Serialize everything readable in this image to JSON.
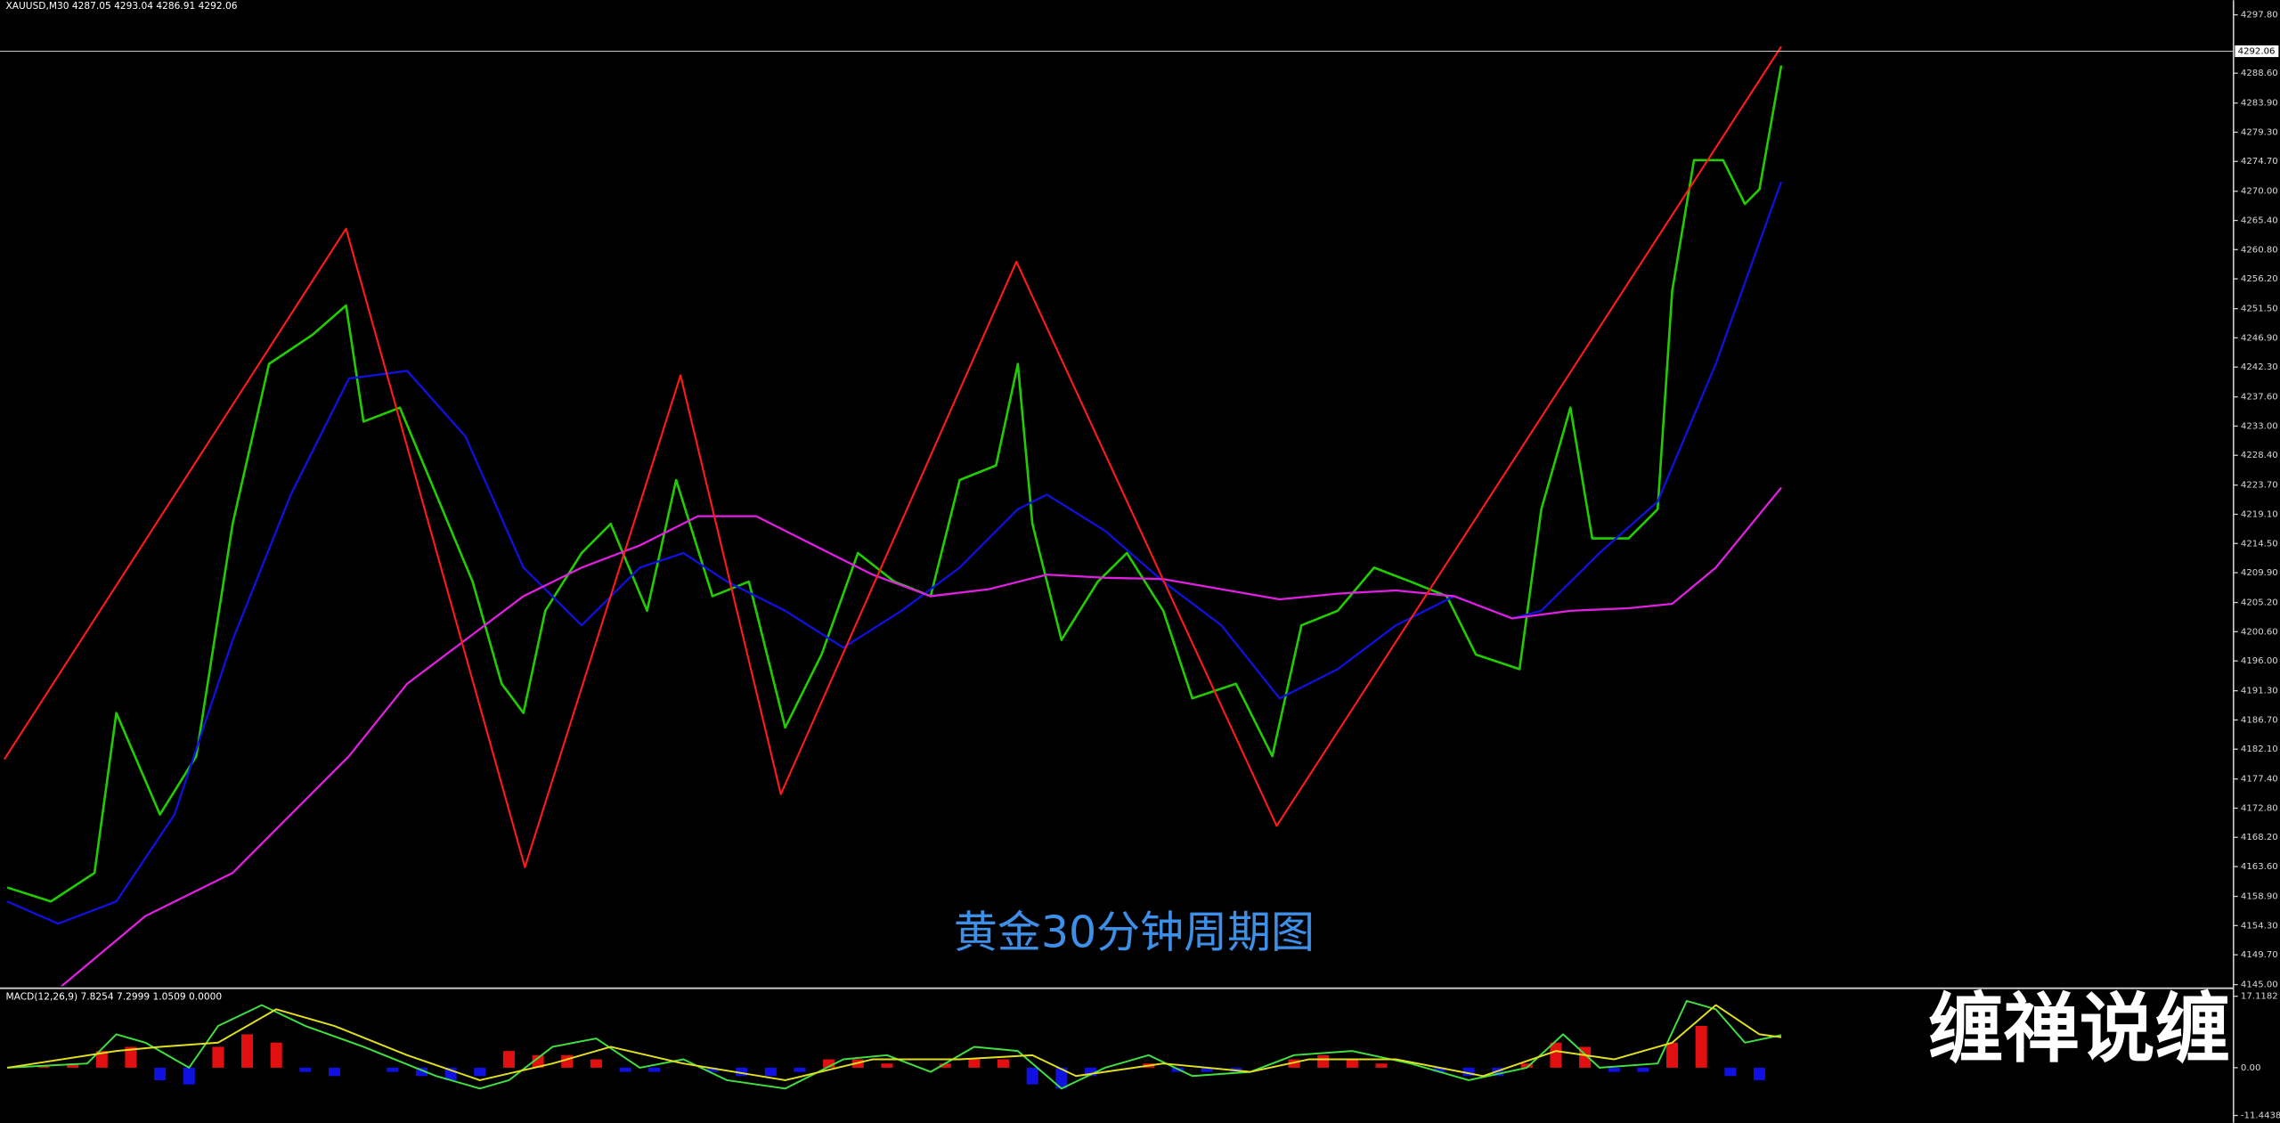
{
  "chart_data": [
    {
      "type": "line",
      "title": "XAUUSD,M30  4287.05 4293.04 4286.91 4292.06",
      "annotation": "黄金30分钟周期图",
      "watermark": "缠禅说缠",
      "xlim": [
        0,
        1536
      ],
      "ylim": [
        4145.0,
        4297.8
      ],
      "yticks": [
        {
          "value": 4297.8,
          "label": "4297.80"
        },
        {
          "value": 4288.6,
          "label": "4288.60"
        },
        {
          "value": 4283.9,
          "label": "4283.90"
        },
        {
          "value": 4279.3,
          "label": "4279.30"
        },
        {
          "value": 4274.7,
          "label": "4274.70"
        },
        {
          "value": 4270.0,
          "label": "4270.00"
        },
        {
          "value": 4265.4,
          "label": "4265.40"
        },
        {
          "value": 4260.8,
          "label": "4260.80"
        },
        {
          "value": 4256.2,
          "label": "4256.20"
        },
        {
          "value": 4251.5,
          "label": "4251.50"
        },
        {
          "value": 4246.9,
          "label": "4246.90"
        },
        {
          "value": 4242.3,
          "label": "4242.30"
        },
        {
          "value": 4237.6,
          "label": "4237.60"
        },
        {
          "value": 4233.0,
          "label": "4233.00"
        },
        {
          "value": 4228.4,
          "label": "4228.40"
        },
        {
          "value": 4223.7,
          "label": "4223.70"
        },
        {
          "value": 4219.1,
          "label": "4219.10"
        },
        {
          "value": 4214.5,
          "label": "4214.50"
        },
        {
          "value": 4209.9,
          "label": "4209.90"
        },
        {
          "value": 4205.2,
          "label": "4205.20"
        },
        {
          "value": 4200.6,
          "label": "4200.60"
        },
        {
          "value": 4196.0,
          "label": "4196.00"
        },
        {
          "value": 4191.3,
          "label": "4191.30"
        },
        {
          "value": 4186.7,
          "label": "4186.70"
        },
        {
          "value": 4182.1,
          "label": "4182.10"
        },
        {
          "value": 4177.4,
          "label": "4177.40"
        },
        {
          "value": 4172.8,
          "label": "4172.80"
        },
        {
          "value": 4168.2,
          "label": "4168.20"
        },
        {
          "value": 4163.6,
          "label": "4163.60"
        },
        {
          "value": 4158.9,
          "label": "4158.90"
        },
        {
          "value": 4154.3,
          "label": "4154.30"
        },
        {
          "value": 4149.7,
          "label": "4149.70"
        },
        {
          "value": 4145.0,
          "label": "4145.00"
        }
      ],
      "last_price": 4292.06,
      "series": [
        {
          "color": "#22cc00",
          "width": 1.6,
          "x": [
            5,
            35,
            65,
            80,
            110,
            135,
            160,
            185,
            215,
            238,
            250,
            275,
            300,
            325,
            345,
            360,
            375,
            400,
            420,
            445,
            465,
            490,
            515,
            540,
            565,
            590,
            615,
            640,
            660,
            685,
            700,
            710,
            730,
            755,
            775,
            800,
            820,
            850,
            875,
            895,
            920,
            945,
            970,
            995,
            1015,
            1045,
            1060,
            1080,
            1095,
            1120,
            1140,
            1150,
            1165,
            1185,
            1200,
            1210,
            1225
          ],
          "values": [
            4160.3,
            4158.1,
            4162.6,
            4187.8,
            4171.8,
            4181.0,
            4217.6,
            4242.8,
            4247.4,
            4252.0,
            4233.7,
            4235.9,
            4222.2,
            4208.5,
            4192.4,
            4187.8,
            4203.9,
            4213.0,
            4217.6,
            4203.9,
            4224.5,
            4206.2,
            4208.5,
            4185.5,
            4197.0,
            4213.0,
            4208.5,
            4206.2,
            4224.5,
            4226.8,
            4242.8,
            4217.6,
            4199.3,
            4208.5,
            4213.0,
            4203.9,
            4190.1,
            4192.4,
            4181.0,
            4201.6,
            4203.9,
            4210.7,
            4208.5,
            4206.2,
            4197.0,
            4194.7,
            4219.9,
            4235.9,
            4215.3,
            4215.3,
            4219.9,
            4254.3,
            4274.9,
            4274.9,
            4268.0,
            4270.3,
            4289.8
          ]
        },
        {
          "color": "#1010e0",
          "width": 1.4,
          "x": [
            5,
            40,
            80,
            120,
            160,
            200,
            240,
            280,
            320,
            360,
            400,
            440,
            470,
            500,
            540,
            580,
            620,
            660,
            700,
            720,
            760,
            800,
            840,
            880,
            920,
            960,
            1000,
            1040,
            1060,
            1100,
            1140,
            1180,
            1225
          ],
          "values": [
            4158.1,
            4154.6,
            4158.1,
            4171.8,
            4199.3,
            4222.2,
            4240.5,
            4241.7,
            4231.4,
            4210.7,
            4201.6,
            4210.7,
            4213.0,
            4208.5,
            4203.9,
            4198.1,
            4203.9,
            4210.7,
            4219.9,
            4222.2,
            4216.5,
            4208.5,
            4201.6,
            4190.1,
            4194.7,
            4201.6,
            4206.2,
            4202.7,
            4203.9,
            4213.0,
            4221.1,
            4242.8,
            4271.5
          ]
        },
        {
          "color": "#e020e0",
          "width": 1.4,
          "x": [
            40,
            100,
            160,
            200,
            240,
            280,
            320,
            360,
            400,
            440,
            480,
            520,
            560,
            600,
            640,
            680,
            720,
            760,
            800,
            840,
            880,
            920,
            960,
            1000,
            1040,
            1080,
            1120,
            1150,
            1180,
            1225
          ],
          "values": [
            4144.3,
            4155.8,
            4162.6,
            4171.8,
            4181.0,
            4192.4,
            4199.3,
            4206.2,
            4210.7,
            4214.2,
            4218.8,
            4218.8,
            4214.2,
            4209.6,
            4206.2,
            4207.3,
            4209.6,
            4209.1,
            4208.9,
            4207.3,
            4205.7,
            4206.6,
            4207.1,
            4206.2,
            4202.7,
            4203.9,
            4204.3,
            4205.0,
            4210.7,
            4223.3
          ]
        },
        {
          "color": "#ff1a1a",
          "width": 1.3,
          "x": [
            3,
            238,
            361,
            468,
            537,
            699,
            878,
            1225
          ],
          "values": [
            4180.5,
            4264.1,
            4163.5,
            4241.0,
            4175.0,
            4258.9,
            4170.0,
            4292.8
          ]
        }
      ]
    },
    {
      "type": "macd",
      "title": "MACD(12,26,9) 7.8254 7.2999 1.0509 0.0000",
      "xlim": [
        0,
        1536
      ],
      "ylim": [
        -11.4438,
        17.1182
      ],
      "yticks": [
        17.1182,
        {
          "value": 0,
          "label": "0.00"
        },
        -11.4438
      ],
      "histogram": {
        "positive_color": "#e01010",
        "negative_color": "#1010e0",
        "x": [
          10,
          30,
          50,
          70,
          90,
          110,
          130,
          150,
          170,
          190,
          210,
          230,
          250,
          270,
          290,
          310,
          330,
          350,
          370,
          390,
          410,
          430,
          450,
          470,
          490,
          510,
          530,
          550,
          570,
          590,
          610,
          630,
          650,
          670,
          690,
          710,
          730,
          750,
          770,
          790,
          810,
          830,
          850,
          870,
          890,
          910,
          930,
          950,
          970,
          990,
          1010,
          1030,
          1050,
          1070,
          1090,
          1110,
          1130,
          1150,
          1170,
          1190,
          1210
        ],
        "values": [
          0,
          0.5,
          1,
          4,
          5,
          -3,
          -4,
          5,
          8,
          6,
          -1,
          -2,
          0,
          -1,
          -2,
          -3,
          -2,
          4,
          3,
          3,
          2,
          -1,
          -1,
          0,
          -1,
          -2,
          -2,
          -1,
          2,
          2,
          1,
          0,
          1,
          2,
          2,
          -4,
          -5,
          -2,
          0,
          1,
          -1,
          -1,
          -1,
          0,
          2,
          3,
          2,
          1,
          0,
          -1,
          -2,
          -2,
          1,
          6,
          5,
          -1,
          -1,
          6,
          10,
          -2,
          -3
        ]
      },
      "series": [
        {
          "color": "#40e040",
          "x": [
            5,
            60,
            80,
            100,
            130,
            150,
            180,
            210,
            250,
            300,
            330,
            350,
            380,
            410,
            440,
            470,
            500,
            540,
            580,
            610,
            640,
            670,
            700,
            730,
            760,
            790,
            820,
            860,
            890,
            930,
            970,
            1010,
            1050,
            1075,
            1100,
            1140,
            1160,
            1180,
            1200,
            1225
          ],
          "values": [
            0,
            1,
            8,
            6,
            0,
            10,
            15,
            10,
            5,
            -2,
            -5,
            -3,
            5,
            7,
            0,
            2,
            -3,
            -5,
            2,
            3,
            -1,
            5,
            4,
            -5,
            0,
            3,
            -2,
            -1,
            3,
            4,
            1,
            -3,
            0,
            8,
            0,
            1,
            16,
            14,
            6,
            7.8
          ]
        },
        {
          "color": "#e0e020",
          "x": [
            5,
            80,
            110,
            150,
            190,
            230,
            280,
            330,
            380,
            420,
            470,
            540,
            600,
            660,
            710,
            740,
            800,
            860,
            900,
            960,
            1020,
            1070,
            1110,
            1150,
            1180,
            1210,
            1225
          ],
          "values": [
            0,
            4,
            5,
            6,
            14,
            10,
            3,
            -3,
            1,
            5,
            1,
            -3,
            2,
            2,
            3,
            -2,
            1,
            -1,
            2,
            2,
            -2,
            4,
            2,
            6,
            15,
            8,
            7.3
          ]
        }
      ]
    }
  ]
}
